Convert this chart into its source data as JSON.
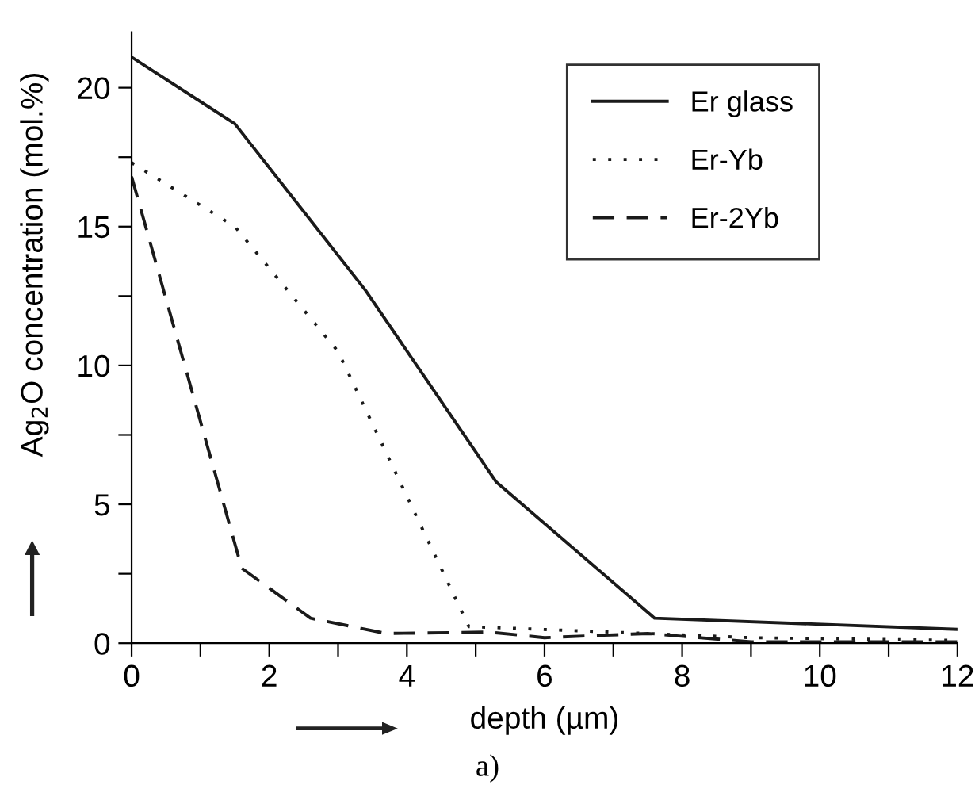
{
  "chart_data": {
    "type": "line",
    "xlabel": "depth (µm)",
    "ylabel": "Ag$_{2}$O concentration (mol.%)",
    "xlim": [
      0,
      12
    ],
    "ylim": [
      0,
      22
    ],
    "xticks": [
      0,
      {
        "value": 1,
        "label": null
      },
      2,
      {
        "value": 3,
        "label": null
      },
      4,
      {
        "value": 5,
        "label": null
      },
      6,
      {
        "value": 7,
        "label": null
      },
      8,
      {
        "value": 9,
        "label": null
      },
      10,
      {
        "value": 11,
        "label": null
      },
      12
    ],
    "yticks": [
      0,
      {
        "value": 2.5,
        "label": null
      },
      5,
      {
        "value": 7.5,
        "label": null
      },
      10,
      {
        "value": 12.5,
        "label": null
      },
      15,
      {
        "value": 17.5,
        "label": null
      },
      20
    ],
    "grid": false,
    "legend": "top right",
    "series": [
      {
        "name": "Er glass",
        "color": "#1a1a1a",
        "line_style": "solid",
        "x": [
          0,
          1.5,
          3.4,
          5.3,
          7.6,
          12
        ],
        "values": [
          21.1,
          18.7,
          12.7,
          5.8,
          0.9,
          0.5
        ]
      },
      {
        "name": "Er-Yb",
        "color": "#1a1a1a",
        "line_style": "dotted",
        "x": [
          0,
          1.5,
          3,
          4.9,
          7.5,
          9,
          12
        ],
        "values": [
          17.3,
          15.0,
          10.5,
          0.6,
          0.35,
          0.2,
          0.1
        ]
      },
      {
        "name": "Er-2Yb",
        "color": "#1a1a1a",
        "line_style": "dashed",
        "x": [
          0,
          1.6,
          2.6,
          3.7,
          5.2,
          6,
          7.5,
          9,
          12
        ],
        "values": [
          16.8,
          2.7,
          0.9,
          0.35,
          0.4,
          0.2,
          0.35,
          0.05,
          0.05
        ]
      }
    ],
    "annotations": [
      "a)"
    ]
  }
}
